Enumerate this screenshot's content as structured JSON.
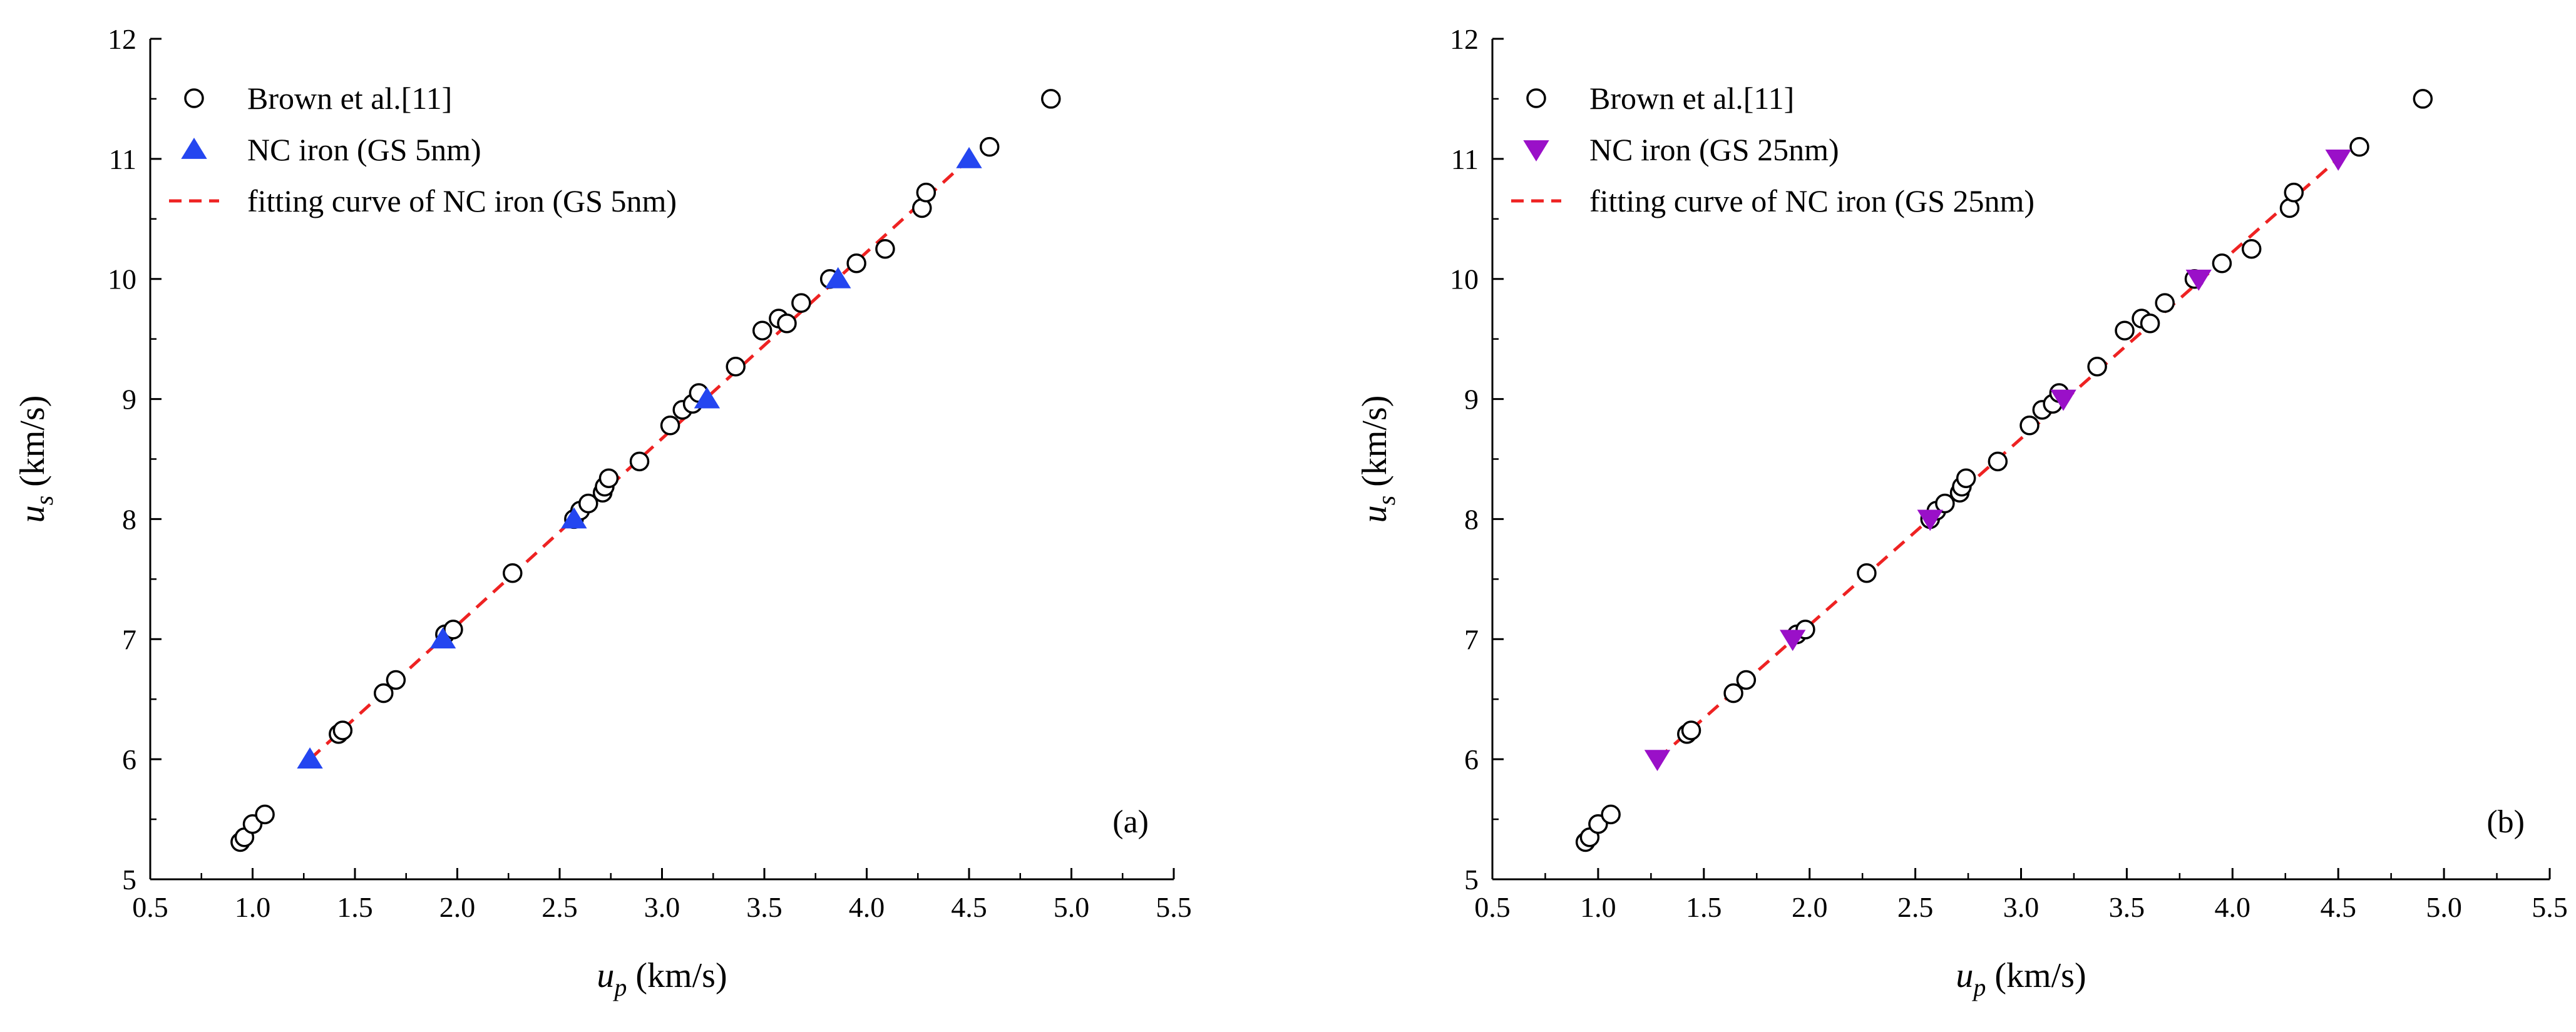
{
  "chart_data": [
    {
      "type": "scatter",
      "panel_label": "(a)",
      "xlabel_sym": "u",
      "xlabel_sub": "p",
      "xlabel_unit": " (km/s)",
      "ylabel_sym": "u",
      "ylabel_sub": "s",
      "ylabel_unit": " (km/s)",
      "xlim": [
        0.5,
        5.5
      ],
      "ylim": [
        5,
        12
      ],
      "xticks": [
        0.5,
        1.0,
        1.5,
        2.0,
        2.5,
        3.0,
        3.5,
        4.0,
        4.5,
        5.0,
        5.5
      ],
      "xtick_labels": [
        "0.5",
        "1.0",
        "1.5",
        "2.0",
        "2.5",
        "3.0",
        "3.5",
        "4.0",
        "4.5",
        "5.0",
        "5.5"
      ],
      "yticks": [
        5,
        6,
        7,
        8,
        9,
        10,
        11,
        12
      ],
      "ytick_labels": [
        "5",
        "6",
        "7",
        "8",
        "9",
        "10",
        "11",
        "12"
      ],
      "legend": {
        "position": "top-left",
        "entries": [
          "Brown et al.[11]",
          "NC iron (GS 5nm)",
          "fitting curve of NC iron (GS 5nm)"
        ]
      },
      "series": [
        {
          "name": "Brown et al.[11]",
          "marker": "open-circle",
          "color": "#000000",
          "points": [
            [
              0.94,
              5.31
            ],
            [
              0.96,
              5.35
            ],
            [
              1.0,
              5.46
            ],
            [
              1.06,
              5.54
            ],
            [
              1.42,
              6.21
            ],
            [
              1.44,
              6.24
            ],
            [
              1.64,
              6.55
            ],
            [
              1.7,
              6.66
            ],
            [
              1.94,
              7.04
            ],
            [
              1.98,
              7.08
            ],
            [
              2.27,
              7.55
            ],
            [
              2.57,
              8.0
            ],
            [
              2.6,
              8.07
            ],
            [
              2.64,
              8.13
            ],
            [
              2.71,
              8.22
            ],
            [
              2.72,
              8.27
            ],
            [
              2.74,
              8.34
            ],
            [
              2.89,
              8.48
            ],
            [
              3.04,
              8.78
            ],
            [
              3.1,
              8.91
            ],
            [
              3.15,
              8.96
            ],
            [
              3.18,
              9.05
            ],
            [
              3.36,
              9.27
            ],
            [
              3.49,
              9.57
            ],
            [
              3.57,
              9.67
            ],
            [
              3.61,
              9.63
            ],
            [
              3.68,
              9.8
            ],
            [
              3.82,
              10.0
            ],
            [
              3.95,
              10.13
            ],
            [
              4.09,
              10.25
            ],
            [
              4.27,
              10.59
            ],
            [
              4.29,
              10.72
            ],
            [
              4.6,
              11.1
            ],
            [
              4.9,
              11.5
            ]
          ]
        },
        {
          "name": "NC iron (GS 5nm)",
          "marker": "triangle-up",
          "color": "#2446f0",
          "points": [
            [
              1.28,
              6.0
            ],
            [
              1.93,
              7.0
            ],
            [
              2.57,
              8.0
            ],
            [
              3.22,
              9.0
            ],
            [
              3.86,
              10.0
            ],
            [
              4.5,
              11.0
            ]
          ]
        },
        {
          "name": "fitting curve of NC iron (GS 5nm)",
          "marker": "dashed-line",
          "color": "#ee2222",
          "points": [
            [
              1.28,
              6.0
            ],
            [
              4.5,
              11.0
            ]
          ]
        }
      ]
    },
    {
      "type": "scatter",
      "panel_label": "(b)",
      "xlabel_sym": "u",
      "xlabel_sub": "p",
      "xlabel_unit": " (km/s)",
      "ylabel_sym": "u",
      "ylabel_sub": "s",
      "ylabel_unit": " (km/s)",
      "xlim": [
        0.5,
        5.5
      ],
      "ylim": [
        5,
        12
      ],
      "xticks": [
        0.5,
        1.0,
        1.5,
        2.0,
        2.5,
        3.0,
        3.5,
        4.0,
        4.5,
        5.0,
        5.5
      ],
      "xtick_labels": [
        "0.5",
        "1.0",
        "1.5",
        "2.0",
        "2.5",
        "3.0",
        "3.5",
        "4.0",
        "4.5",
        "5.0",
        "5.5"
      ],
      "yticks": [
        5,
        6,
        7,
        8,
        9,
        10,
        11,
        12
      ],
      "ytick_labels": [
        "5",
        "6",
        "7",
        "8",
        "9",
        "10",
        "11",
        "12"
      ],
      "legend": {
        "position": "top-left",
        "entries": [
          "Brown et al.[11]",
          "NC iron (GS 25nm)",
          "fitting curve of NC iron (GS 25nm)"
        ]
      },
      "series": [
        {
          "name": "Brown et al.[11]",
          "marker": "open-circle",
          "color": "#000000",
          "points": [
            [
              0.94,
              5.31
            ],
            [
              0.96,
              5.35
            ],
            [
              1.0,
              5.46
            ],
            [
              1.06,
              5.54
            ],
            [
              1.42,
              6.21
            ],
            [
              1.44,
              6.24
            ],
            [
              1.64,
              6.55
            ],
            [
              1.7,
              6.66
            ],
            [
              1.94,
              7.04
            ],
            [
              1.98,
              7.08
            ],
            [
              2.27,
              7.55
            ],
            [
              2.57,
              8.0
            ],
            [
              2.6,
              8.07
            ],
            [
              2.64,
              8.13
            ],
            [
              2.71,
              8.22
            ],
            [
              2.72,
              8.27
            ],
            [
              2.74,
              8.34
            ],
            [
              2.89,
              8.48
            ],
            [
              3.04,
              8.78
            ],
            [
              3.1,
              8.91
            ],
            [
              3.15,
              8.96
            ],
            [
              3.18,
              9.05
            ],
            [
              3.36,
              9.27
            ],
            [
              3.49,
              9.57
            ],
            [
              3.57,
              9.67
            ],
            [
              3.61,
              9.63
            ],
            [
              3.68,
              9.8
            ],
            [
              3.82,
              10.0
            ],
            [
              3.95,
              10.13
            ],
            [
              4.09,
              10.25
            ],
            [
              4.27,
              10.59
            ],
            [
              4.29,
              10.72
            ],
            [
              4.6,
              11.1
            ],
            [
              4.9,
              11.5
            ]
          ]
        },
        {
          "name": "NC iron (GS 25nm)",
          "marker": "triangle-down",
          "color": "#9a10c8",
          "points": [
            [
              1.28,
              6.0
            ],
            [
              1.92,
              7.0
            ],
            [
              2.57,
              8.0
            ],
            [
              3.2,
              9.0
            ],
            [
              3.84,
              10.0
            ],
            [
              4.5,
              11.0
            ]
          ]
        },
        {
          "name": "fitting curve of NC iron (GS 25nm)",
          "marker": "dashed-line",
          "color": "#ee2222",
          "points": [
            [
              1.28,
              6.0
            ],
            [
              4.5,
              11.0
            ]
          ]
        }
      ]
    }
  ]
}
